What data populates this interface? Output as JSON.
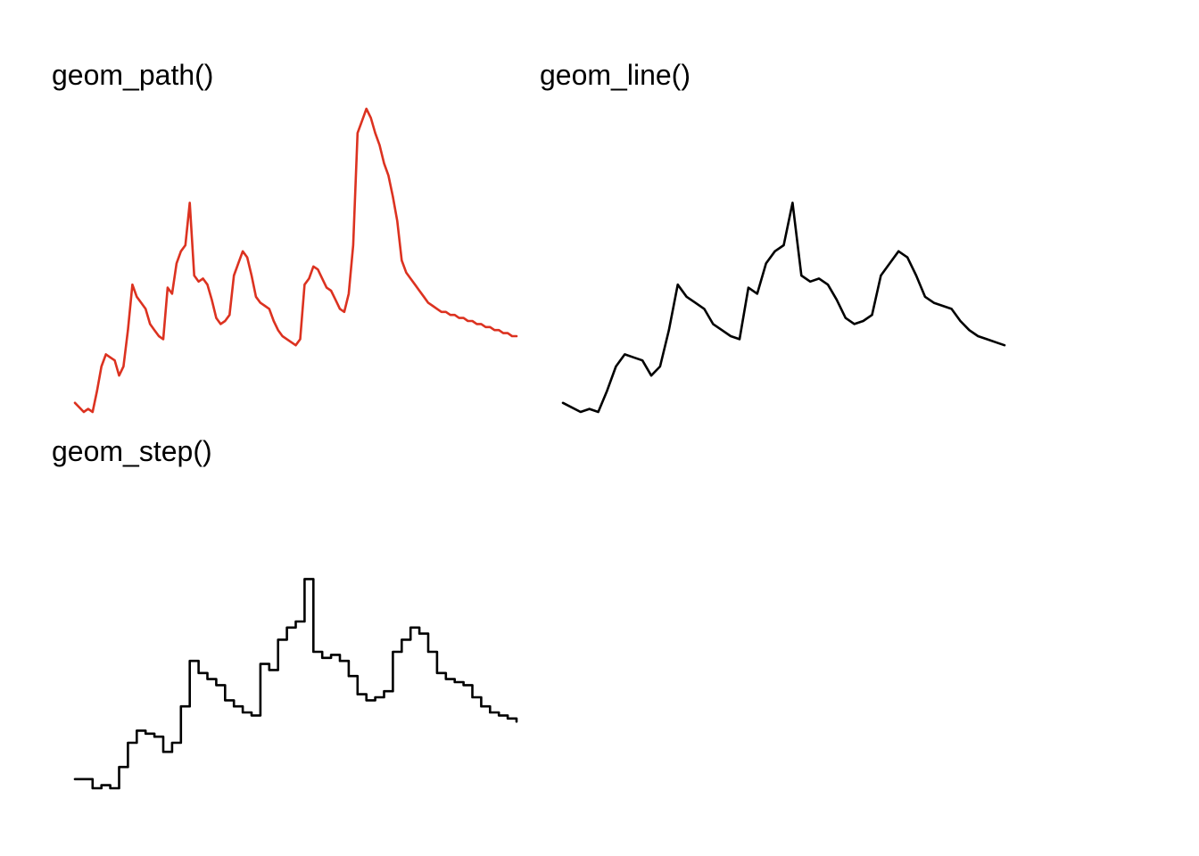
{
  "chart_data": [
    {
      "type": "line",
      "title": "geom_path()",
      "xlabel": "",
      "ylabel": "",
      "grid": false,
      "series": [
        {
          "color": "#dc3220",
          "geom": "path",
          "x": [
            0,
            4,
            6,
            8,
            10,
            12,
            14,
            16,
            18,
            20,
            22,
            24,
            26,
            28,
            30,
            32,
            34,
            36,
            38,
            40,
            42,
            44,
            46,
            48,
            50,
            52,
            54,
            56,
            58,
            60,
            62,
            64,
            66,
            68,
            70,
            72,
            74,
            76,
            78,
            80,
            82,
            84,
            86,
            88,
            90,
            92,
            94,
            96,
            98,
            100,
            102,
            104,
            106,
            108,
            110,
            112,
            114,
            116,
            118,
            120,
            122,
            124,
            126,
            128,
            130,
            132,
            134,
            136,
            138,
            140,
            142,
            144,
            146,
            148,
            150,
            152,
            154,
            156,
            158,
            160,
            162,
            164,
            166,
            168,
            170,
            172,
            174,
            176,
            178,
            180,
            182,
            184,
            186,
            188,
            190,
            192,
            194,
            196,
            198,
            200
          ],
          "y": [
            0.03,
            0.0,
            0.01,
            0.0,
            0.07,
            0.15,
            0.19,
            0.18,
            0.17,
            0.12,
            0.15,
            0.27,
            0.42,
            0.38,
            0.36,
            0.34,
            0.29,
            0.27,
            0.25,
            0.24,
            0.41,
            0.39,
            0.49,
            0.53,
            0.55,
            0.69,
            0.45,
            0.43,
            0.44,
            0.42,
            0.37,
            0.31,
            0.29,
            0.3,
            0.32,
            0.45,
            0.49,
            0.53,
            0.51,
            0.45,
            0.38,
            0.36,
            0.35,
            0.34,
            0.3,
            0.27,
            0.25,
            0.24,
            0.23,
            0.22,
            0.24,
            0.42,
            0.44,
            0.48,
            0.47,
            0.44,
            0.41,
            0.4,
            0.37,
            0.34,
            0.33,
            0.39,
            0.55,
            0.92,
            0.96,
            1.0,
            0.97,
            0.92,
            0.88,
            0.82,
            0.78,
            0.71,
            0.63,
            0.5,
            0.46,
            0.44,
            0.42,
            0.4,
            0.38,
            0.36,
            0.35,
            0.34,
            0.33,
            0.33,
            0.32,
            0.32,
            0.31,
            0.31,
            0.3,
            0.3,
            0.29,
            0.29,
            0.28,
            0.28,
            0.27,
            0.27,
            0.26,
            0.26,
            0.25,
            0.25
          ]
        }
      ]
    },
    {
      "type": "line",
      "title": "geom_line()",
      "xlabel": "",
      "ylabel": "",
      "grid": false,
      "series": [
        {
          "color": "#000000",
          "geom": "line",
          "x": [
            0,
            4,
            6,
            8,
            10,
            12,
            14,
            16,
            18,
            20,
            22,
            24,
            26,
            28,
            30,
            32,
            34,
            36,
            38,
            40,
            42,
            44,
            46,
            48,
            50,
            52,
            54,
            56,
            58,
            60,
            62,
            64,
            66,
            68,
            70,
            72,
            74,
            76,
            78,
            80,
            82,
            84,
            86,
            88,
            90,
            92,
            94,
            96,
            98,
            100
          ],
          "y": [
            0.03,
            0.0,
            0.01,
            0.0,
            0.07,
            0.15,
            0.19,
            0.18,
            0.17,
            0.12,
            0.15,
            0.27,
            0.42,
            0.38,
            0.36,
            0.34,
            0.29,
            0.27,
            0.25,
            0.24,
            0.41,
            0.39,
            0.49,
            0.53,
            0.55,
            0.69,
            0.45,
            0.43,
            0.44,
            0.42,
            0.37,
            0.31,
            0.29,
            0.3,
            0.32,
            0.45,
            0.49,
            0.53,
            0.51,
            0.45,
            0.38,
            0.36,
            0.35,
            0.34,
            0.3,
            0.27,
            0.25,
            0.24,
            0.23,
            0.22
          ]
        }
      ]
    },
    {
      "type": "line",
      "title": "geom_step()",
      "xlabel": "",
      "ylabel": "",
      "grid": false,
      "series": [
        {
          "color": "#000000",
          "geom": "step",
          "x": [
            0,
            4,
            6,
            8,
            10,
            12,
            14,
            16,
            18,
            20,
            22,
            24,
            26,
            28,
            30,
            32,
            34,
            36,
            38,
            40,
            42,
            44,
            46,
            48,
            50,
            52,
            54,
            56,
            58,
            60,
            62,
            64,
            66,
            68,
            70,
            72,
            74,
            76,
            78,
            80,
            82,
            84,
            86,
            88,
            90,
            92,
            94,
            96,
            98,
            100
          ],
          "y": [
            0.03,
            0.0,
            0.01,
            0.0,
            0.07,
            0.15,
            0.19,
            0.18,
            0.17,
            0.12,
            0.15,
            0.27,
            0.42,
            0.38,
            0.36,
            0.34,
            0.29,
            0.27,
            0.25,
            0.24,
            0.41,
            0.39,
            0.49,
            0.53,
            0.55,
            0.69,
            0.45,
            0.43,
            0.44,
            0.42,
            0.37,
            0.31,
            0.29,
            0.3,
            0.32,
            0.45,
            0.49,
            0.53,
            0.51,
            0.45,
            0.38,
            0.36,
            0.35,
            0.34,
            0.3,
            0.27,
            0.25,
            0.24,
            0.23,
            0.22
          ]
        }
      ]
    }
  ]
}
